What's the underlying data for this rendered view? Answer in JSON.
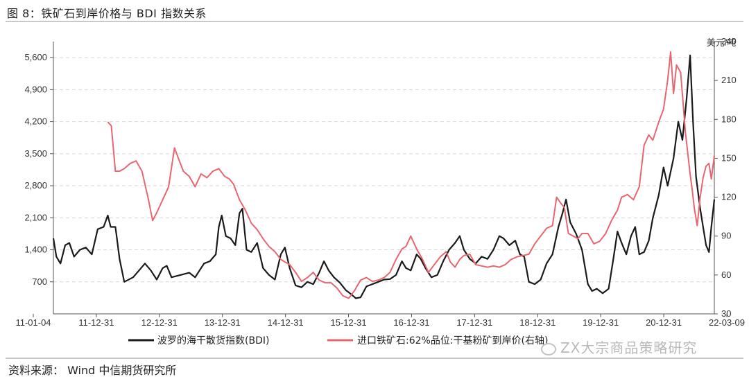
{
  "header": {
    "title": "图 8：铁矿石到岸价格与 BDI 指数关系"
  },
  "footer": {
    "source": "资料来源： Wind  中信期货研究所",
    "watermark": "ZX大宗商品策略研究"
  },
  "chart_data": {
    "type": "line",
    "title": "铁矿石到岸价格与 BDI 指数关系",
    "x_ticks": [
      "11-01-04",
      "11-12-31",
      "12-12-31",
      "13-12-31",
      "14-12-31",
      "15-12-31",
      "16-12-31",
      "17-12-31",
      "18-12-31",
      "19-12-31",
      "20-12-31",
      "22-03-09"
    ],
    "x_range": [
      2011.0,
      2022.19
    ],
    "y_left": {
      "label": "",
      "ylim": [
        0,
        5950
      ],
      "ticks": [
        700,
        1400,
        2100,
        2800,
        3500,
        4200,
        4900,
        5600
      ],
      "tick_labels": [
        "700",
        "1,400",
        "2,100",
        "2,800",
        "3,500",
        "4,200",
        "4,900",
        "5,600"
      ]
    },
    "y_right": {
      "label": "美元/吨",
      "ylim": [
        30,
        240
      ],
      "ticks": [
        30,
        60,
        90,
        120,
        150,
        180,
        210,
        240
      ],
      "tick_labels": [
        "30",
        "60",
        "90",
        "120",
        "150",
        "180",
        "210",
        "240"
      ]
    },
    "series": [
      {
        "name": "波罗的海干散货指数(BDI)",
        "axis": "left",
        "color": "#1a1a1a",
        "points": [
          [
            2011.0,
            1650
          ],
          [
            2011.05,
            1250
          ],
          [
            2011.12,
            1100
          ],
          [
            2011.2,
            1500
          ],
          [
            2011.27,
            1550
          ],
          [
            2011.35,
            1250
          ],
          [
            2011.45,
            1400
          ],
          [
            2011.55,
            1450
          ],
          [
            2011.65,
            1300
          ],
          [
            2011.75,
            1850
          ],
          [
            2011.85,
            1900
          ],
          [
            2011.92,
            2150
          ],
          [
            2011.97,
            1900
          ],
          [
            2012.05,
            1900
          ],
          [
            2012.12,
            1200
          ],
          [
            2012.2,
            700
          ],
          [
            2012.35,
            800
          ],
          [
            2012.45,
            950
          ],
          [
            2012.55,
            1100
          ],
          [
            2012.65,
            950
          ],
          [
            2012.75,
            750
          ],
          [
            2012.85,
            1000
          ],
          [
            2012.92,
            1050
          ],
          [
            2013.0,
            800
          ],
          [
            2013.15,
            850
          ],
          [
            2013.3,
            900
          ],
          [
            2013.4,
            800
          ],
          [
            2013.55,
            1100
          ],
          [
            2013.65,
            1150
          ],
          [
            2013.75,
            1300
          ],
          [
            2013.8,
            1900
          ],
          [
            2013.85,
            2150
          ],
          [
            2013.92,
            1700
          ],
          [
            2014.0,
            1650
          ],
          [
            2014.08,
            1500
          ],
          [
            2014.15,
            2200
          ],
          [
            2014.2,
            2300
          ],
          [
            2014.27,
            1400
          ],
          [
            2014.35,
            1350
          ],
          [
            2014.45,
            1550
          ],
          [
            2014.55,
            1000
          ],
          [
            2014.65,
            850
          ],
          [
            2014.75,
            750
          ],
          [
            2014.85,
            1300
          ],
          [
            2014.92,
            1450
          ],
          [
            2015.0,
            1000
          ],
          [
            2015.1,
            620
          ],
          [
            2015.2,
            580
          ],
          [
            2015.3,
            700
          ],
          [
            2015.4,
            650
          ],
          [
            2015.5,
            900
          ],
          [
            2015.58,
            1150
          ],
          [
            2015.66,
            950
          ],
          [
            2015.75,
            800
          ],
          [
            2015.85,
            680
          ],
          [
            2015.95,
            520
          ],
          [
            2016.05,
            420
          ],
          [
            2016.12,
            340
          ],
          [
            2016.2,
            360
          ],
          [
            2016.3,
            600
          ],
          [
            2016.4,
            650
          ],
          [
            2016.5,
            700
          ],
          [
            2016.6,
            750
          ],
          [
            2016.7,
            760
          ],
          [
            2016.8,
            850
          ],
          [
            2016.9,
            1150
          ],
          [
            2016.97,
            1000
          ],
          [
            2017.05,
            950
          ],
          [
            2017.15,
            1300
          ],
          [
            2017.22,
            1200
          ],
          [
            2017.3,
            1000
          ],
          [
            2017.4,
            800
          ],
          [
            2017.5,
            850
          ],
          [
            2017.6,
            1150
          ],
          [
            2017.7,
            1400
          ],
          [
            2017.8,
            1550
          ],
          [
            2017.88,
            1700
          ],
          [
            2017.95,
            1400
          ],
          [
            2018.05,
            1200
          ],
          [
            2018.15,
            1100
          ],
          [
            2018.25,
            1250
          ],
          [
            2018.35,
            1200
          ],
          [
            2018.45,
            1400
          ],
          [
            2018.55,
            1700
          ],
          [
            2018.62,
            1650
          ],
          [
            2018.72,
            1500
          ],
          [
            2018.82,
            1600
          ],
          [
            2018.9,
            1300
          ],
          [
            2018.97,
            1250
          ],
          [
            2019.05,
            700
          ],
          [
            2019.15,
            650
          ],
          [
            2019.25,
            750
          ],
          [
            2019.35,
            1100
          ],
          [
            2019.45,
            1300
          ],
          [
            2019.55,
            1900
          ],
          [
            2019.62,
            2200
          ],
          [
            2019.68,
            2500
          ],
          [
            2019.75,
            2000
          ],
          [
            2019.85,
            1750
          ],
          [
            2019.95,
            1400
          ],
          [
            2020.05,
            650
          ],
          [
            2020.12,
            500
          ],
          [
            2020.2,
            550
          ],
          [
            2020.3,
            450
          ],
          [
            2020.4,
            550
          ],
          [
            2020.48,
            1200
          ],
          [
            2020.55,
            1800
          ],
          [
            2020.62,
            1550
          ],
          [
            2020.7,
            1300
          ],
          [
            2020.78,
            1700
          ],
          [
            2020.85,
            1900
          ],
          [
            2020.92,
            1300
          ],
          [
            2021.0,
            1350
          ],
          [
            2021.08,
            1600
          ],
          [
            2021.15,
            2100
          ],
          [
            2021.25,
            2600
          ],
          [
            2021.33,
            3200
          ],
          [
            2021.4,
            2800
          ],
          [
            2021.5,
            3400
          ],
          [
            2021.58,
            4200
          ],
          [
            2021.65,
            3800
          ],
          [
            2021.72,
            4700
          ],
          [
            2021.78,
            5650
          ],
          [
            2021.83,
            4200
          ],
          [
            2021.88,
            3000
          ],
          [
            2021.95,
            2300
          ],
          [
            2022.0,
            1900
          ],
          [
            2022.05,
            1500
          ],
          [
            2022.1,
            1350
          ],
          [
            2022.14,
            1900
          ],
          [
            2022.19,
            2500
          ]
        ]
      },
      {
        "name": "进口铁矿石:62%品位:干基粉矿到岸价(右轴)",
        "axis": "right",
        "color": "#e8666f",
        "points": [
          [
            2011.92,
            178
          ],
          [
            2011.98,
            175
          ],
          [
            2012.05,
            140
          ],
          [
            2012.12,
            140
          ],
          [
            2012.2,
            142
          ],
          [
            2012.3,
            146
          ],
          [
            2012.4,
            148
          ],
          [
            2012.5,
            140
          ],
          [
            2012.6,
            120
          ],
          [
            2012.68,
            102
          ],
          [
            2012.75,
            108
          ],
          [
            2012.85,
            118
          ],
          [
            2012.95,
            128
          ],
          [
            2013.05,
            158
          ],
          [
            2013.1,
            152
          ],
          [
            2013.2,
            140
          ],
          [
            2013.3,
            136
          ],
          [
            2013.4,
            128
          ],
          [
            2013.5,
            138
          ],
          [
            2013.6,
            135
          ],
          [
            2013.7,
            140
          ],
          [
            2013.8,
            142
          ],
          [
            2013.9,
            136
          ],
          [
            2013.98,
            134
          ],
          [
            2014.05,
            130
          ],
          [
            2014.15,
            118
          ],
          [
            2014.25,
            110
          ],
          [
            2014.35,
            100
          ],
          [
            2014.45,
            95
          ],
          [
            2014.55,
            88
          ],
          [
            2014.65,
            82
          ],
          [
            2014.75,
            78
          ],
          [
            2014.85,
            72
          ],
          [
            2014.92,
            70
          ],
          [
            2015.0,
            68
          ],
          [
            2015.1,
            62
          ],
          [
            2015.2,
            55
          ],
          [
            2015.3,
            58
          ],
          [
            2015.4,
            62
          ],
          [
            2015.5,
            56
          ],
          [
            2015.6,
            54
          ],
          [
            2015.7,
            54
          ],
          [
            2015.8,
            50
          ],
          [
            2015.9,
            44
          ],
          [
            2016.0,
            42
          ],
          [
            2016.1,
            48
          ],
          [
            2016.2,
            56
          ],
          [
            2016.3,
            58
          ],
          [
            2016.4,
            55
          ],
          [
            2016.5,
            56
          ],
          [
            2016.6,
            58
          ],
          [
            2016.7,
            62
          ],
          [
            2016.8,
            72
          ],
          [
            2016.9,
            80
          ],
          [
            2016.97,
            82
          ],
          [
            2017.05,
            90
          ],
          [
            2017.15,
            80
          ],
          [
            2017.25,
            72
          ],
          [
            2017.35,
            62
          ],
          [
            2017.45,
            68
          ],
          [
            2017.55,
            74
          ],
          [
            2017.65,
            78
          ],
          [
            2017.72,
            70
          ],
          [
            2017.8,
            66
          ],
          [
            2017.88,
            72
          ],
          [
            2017.95,
            75
          ],
          [
            2018.05,
            76
          ],
          [
            2018.15,
            68
          ],
          [
            2018.25,
            67
          ],
          [
            2018.35,
            66
          ],
          [
            2018.45,
            67
          ],
          [
            2018.55,
            66
          ],
          [
            2018.65,
            68
          ],
          [
            2018.75,
            72
          ],
          [
            2018.85,
            74
          ],
          [
            2018.95,
            75
          ],
          [
            2019.05,
            76
          ],
          [
            2019.15,
            84
          ],
          [
            2019.25,
            90
          ],
          [
            2019.35,
            96
          ],
          [
            2019.45,
            98
          ],
          [
            2019.52,
            120
          ],
          [
            2019.58,
            116
          ],
          [
            2019.65,
            112
          ],
          [
            2019.72,
            92
          ],
          [
            2019.8,
            90
          ],
          [
            2019.88,
            88
          ],
          [
            2019.95,
            92
          ],
          [
            2020.05,
            92
          ],
          [
            2020.15,
            84
          ],
          [
            2020.25,
            86
          ],
          [
            2020.35,
            92
          ],
          [
            2020.45,
            102
          ],
          [
            2020.55,
            110
          ],
          [
            2020.62,
            120
          ],
          [
            2020.72,
            122
          ],
          [
            2020.82,
            118
          ],
          [
            2020.92,
            128
          ],
          [
            2021.0,
            160
          ],
          [
            2021.08,
            168
          ],
          [
            2021.15,
            164
          ],
          [
            2021.25,
            178
          ],
          [
            2021.33,
            188
          ],
          [
            2021.4,
            210
          ],
          [
            2021.45,
            232
          ],
          [
            2021.5,
            200
          ],
          [
            2021.55,
            222
          ],
          [
            2021.62,
            216
          ],
          [
            2021.7,
            170
          ],
          [
            2021.78,
            138
          ],
          [
            2021.82,
            124
          ],
          [
            2021.85,
            112
          ],
          [
            2021.9,
            98
          ],
          [
            2021.95,
            120
          ],
          [
            2022.0,
            135
          ],
          [
            2022.05,
            144
          ],
          [
            2022.1,
            146
          ],
          [
            2022.14,
            134
          ],
          [
            2022.19,
            152
          ]
        ]
      }
    ],
    "legend": {
      "position": "bottom"
    }
  }
}
